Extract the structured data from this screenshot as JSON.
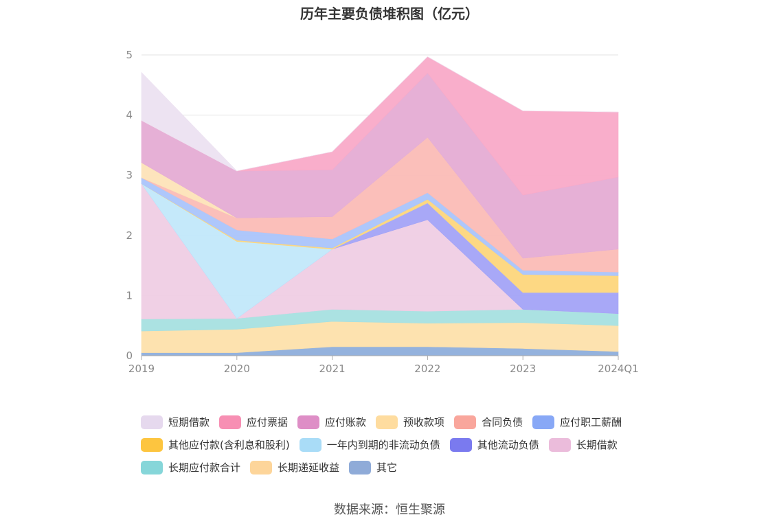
{
  "chart_data": {
    "type": "area",
    "title": "历年主要负债堆积图（亿元）",
    "categories": [
      "2019",
      "2020",
      "2021",
      "2022",
      "2023",
      "2024Q1"
    ],
    "ylim": [
      0,
      5
    ],
    "yticks": [
      "0",
      "1",
      "2",
      "3",
      "4",
      "5"
    ],
    "grid": true,
    "legend_position": "bottom",
    "series": [
      {
        "name": "其它",
        "color": "#8eaedb",
        "values": [
          0.05,
          0.05,
          0.15,
          0.15,
          0.12,
          0.07
        ]
      },
      {
        "name": "长期递延收益",
        "color": "#fde0ab",
        "values": [
          0.36,
          0.39,
          0.42,
          0.39,
          0.43,
          0.43
        ]
      },
      {
        "name": "长期应付款合计",
        "color": "#a6e0e0",
        "values": [
          0.2,
          0.18,
          0.2,
          0.2,
          0.22,
          0.2
        ]
      },
      {
        "name": "长期借款",
        "color": "#efcde4",
        "values": [
          2.25,
          0.0,
          1.0,
          1.52,
          0.0,
          0.0
        ]
      },
      {
        "name": "其他流动负债",
        "color": "#a3a3f7",
        "values": [
          0.0,
          0.0,
          0.0,
          0.28,
          0.28,
          0.35
        ]
      },
      {
        "name": "一年内到期的非流动负债",
        "color": "#c2e8fa",
        "values": [
          0.0,
          1.28,
          0.0,
          0.0,
          0.0,
          0.0
        ]
      },
      {
        "name": "其他应付款(含利息和股利)",
        "color": "#fdd67c",
        "values": [
          0.0,
          0.02,
          0.02,
          0.06,
          0.3,
          0.28
        ]
      },
      {
        "name": "应付职工薪酬",
        "color": "#aac4fb",
        "values": [
          0.1,
          0.17,
          0.15,
          0.11,
          0.07,
          0.06
        ]
      },
      {
        "name": "合同负债",
        "color": "#fbbcb6",
        "values": [
          0.0,
          0.2,
          0.37,
          0.92,
          0.2,
          0.38
        ]
      },
      {
        "name": "预收款项",
        "color": "#fde3b8",
        "values": [
          0.25,
          0.0,
          0.0,
          0.0,
          0.0,
          0.0
        ]
      },
      {
        "name": "应付账款",
        "color": "#e5acd4",
        "values": [
          0.7,
          0.78,
          0.78,
          1.07,
          1.05,
          1.2
        ]
      },
      {
        "name": "应付票据",
        "color": "#f9aac8",
        "values": [
          0.0,
          0.0,
          0.3,
          0.27,
          1.4,
          1.08
        ]
      },
      {
        "name": "短期借款",
        "color": "#ece2f1",
        "values": [
          0.8,
          0.0,
          0.0,
          0.0,
          0.0,
          0.0
        ]
      }
    ]
  },
  "legend": {
    "rows": [
      [
        {
          "label": "短期借款",
          "color": "#e6d9ee"
        },
        {
          "label": "应付票据",
          "color": "#f78fb3"
        },
        {
          "label": "应付账款",
          "color": "#de8ec6"
        },
        {
          "label": "预收款项",
          "color": "#fedc9f"
        },
        {
          "label": "合同负债",
          "color": "#f9a69c"
        },
        {
          "label": "应付职工薪酬",
          "color": "#88a8f6"
        }
      ],
      [
        {
          "label": "其他应付款(含利息和股利)",
          "color": "#fdc53f"
        },
        {
          "label": "一年内到期的非流动负债",
          "color": "#a9dcf7"
        },
        {
          "label": "其他流动负债",
          "color": "#7a7aef"
        },
        {
          "label": "长期借款",
          "color": "#ebbcdb"
        }
      ],
      [
        {
          "label": "长期应付款合计",
          "color": "#86d6d9"
        },
        {
          "label": "长期递延收益",
          "color": "#fdd59a"
        },
        {
          "label": "其它",
          "color": "#8fabd8"
        }
      ]
    ]
  },
  "source": "数据来源：恒生聚源"
}
